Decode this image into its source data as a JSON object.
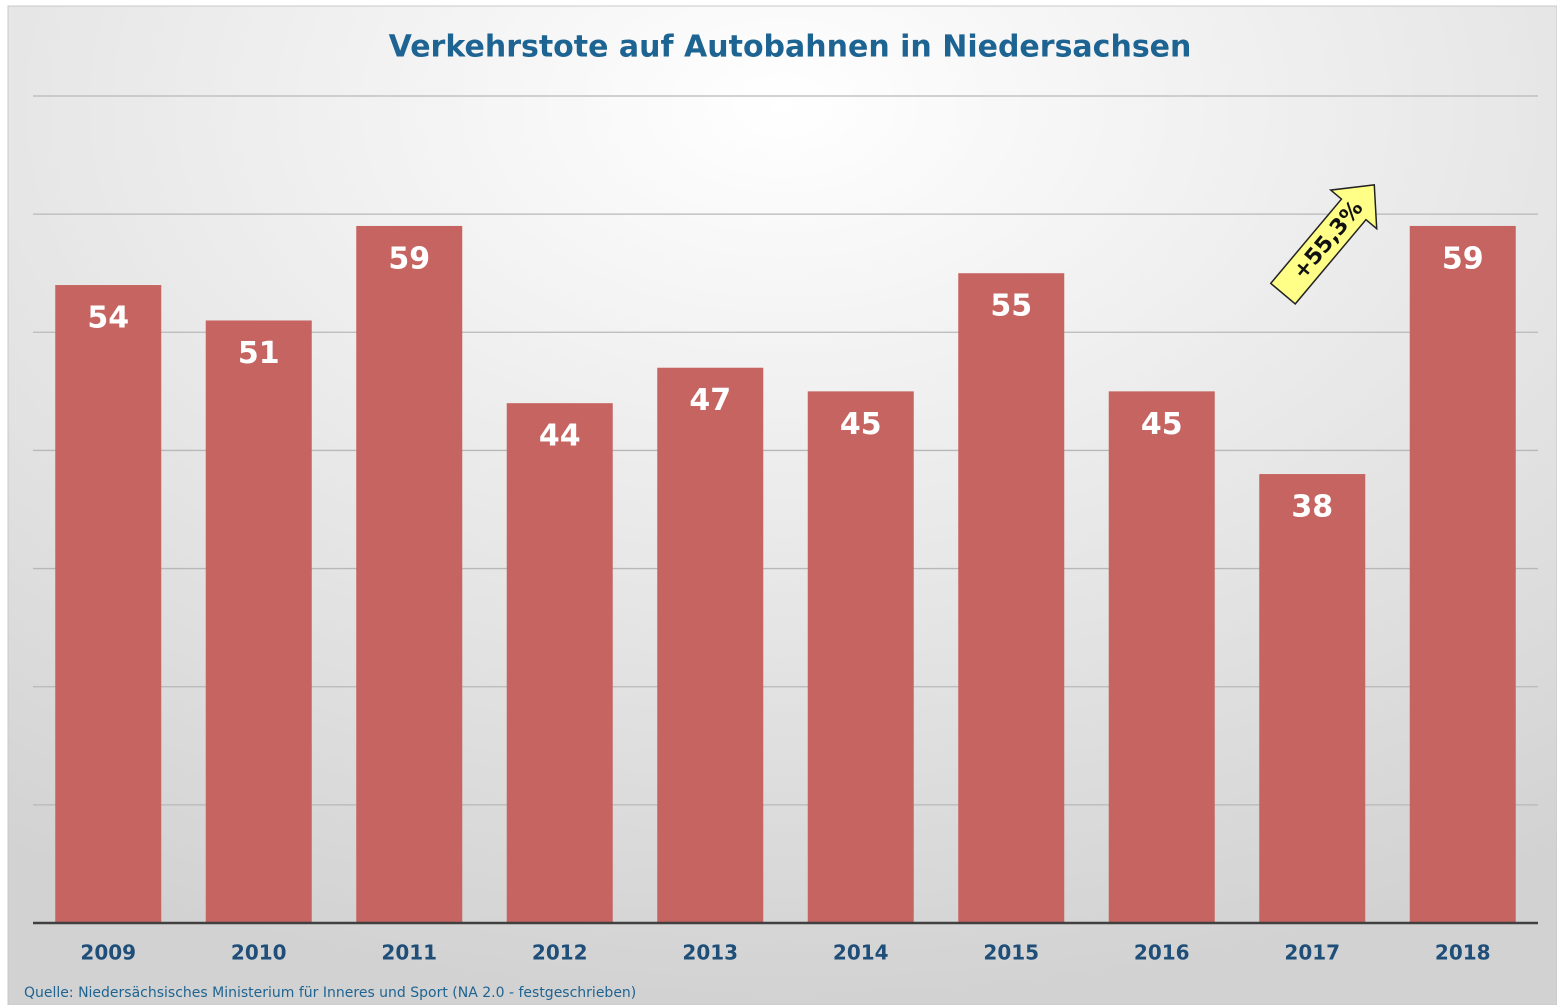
{
  "chart_data": {
    "type": "bar",
    "title": "Verkehrstote auf Autobahnen in Niedersachsen",
    "categories": [
      "2009",
      "2010",
      "2011",
      "2012",
      "2013",
      "2014",
      "2015",
      "2016",
      "2017",
      "2018"
    ],
    "values": [
      54,
      51,
      59,
      44,
      47,
      45,
      55,
      45,
      38,
      59
    ],
    "color": "#c66461",
    "ylim": [
      0,
      70
    ],
    "yticks": [
      0,
      10,
      20,
      30,
      40,
      50,
      60,
      70
    ],
    "grid": true,
    "annotation": "+55,3%",
    "source": "Quelle: Niedersächsisches Ministerium für Inneres und Sport (NA 2.0 - festgeschrieben)"
  }
}
